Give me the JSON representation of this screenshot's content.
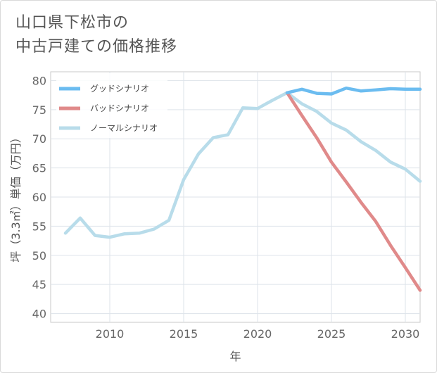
{
  "title_lines": [
    "山口県下松市の",
    "中古戸建ての価格推移"
  ],
  "chart_data": {
    "type": "line",
    "xlabel": "年",
    "ylabel": "坪（3.3㎡）単価（万円）",
    "xlim": [
      2006,
      2031
    ],
    "ylim": [
      38.5,
      81.5
    ],
    "x_ticks": [
      2010,
      2015,
      2020,
      2025,
      2030
    ],
    "y_ticks": [
      40,
      45,
      50,
      55,
      60,
      65,
      70,
      75,
      80
    ],
    "grid": true,
    "legend_position": "top-left",
    "series": [
      {
        "name": "グッドシナリオ",
        "color": "#6bbcf0",
        "x": [
          2022,
          2023,
          2024,
          2025,
          2026,
          2027,
          2028,
          2029,
          2030,
          2031
        ],
        "y": [
          77.9,
          78.5,
          77.8,
          77.7,
          78.7,
          78.2,
          78.4,
          78.6,
          78.5,
          78.5
        ]
      },
      {
        "name": "バッドシナリオ",
        "color": "#e08a8a",
        "x": [
          2022,
          2023,
          2024,
          2025,
          2026,
          2027,
          2028,
          2029,
          2030,
          2031
        ],
        "y": [
          77.9,
          74.0,
          70.2,
          66.0,
          62.6,
          59.1,
          55.8,
          51.7,
          47.9,
          44.0
        ]
      },
      {
        "name": "ノーマルシナリオ",
        "color": "#b8dcea",
        "x": [
          2007,
          2008,
          2009,
          2010,
          2011,
          2012,
          2013,
          2014,
          2015,
          2016,
          2017,
          2018,
          2019,
          2020,
          2021,
          2022,
          2023,
          2024,
          2025,
          2026,
          2027,
          2028,
          2029,
          2030,
          2031
        ],
        "y": [
          53.8,
          56.4,
          53.4,
          53.1,
          53.7,
          53.8,
          54.5,
          56.0,
          63.0,
          67.4,
          70.2,
          70.7,
          75.3,
          75.2,
          76.6,
          77.9,
          76.0,
          74.7,
          72.7,
          71.5,
          69.5,
          68.0,
          66.0,
          64.8,
          62.7
        ]
      }
    ]
  }
}
